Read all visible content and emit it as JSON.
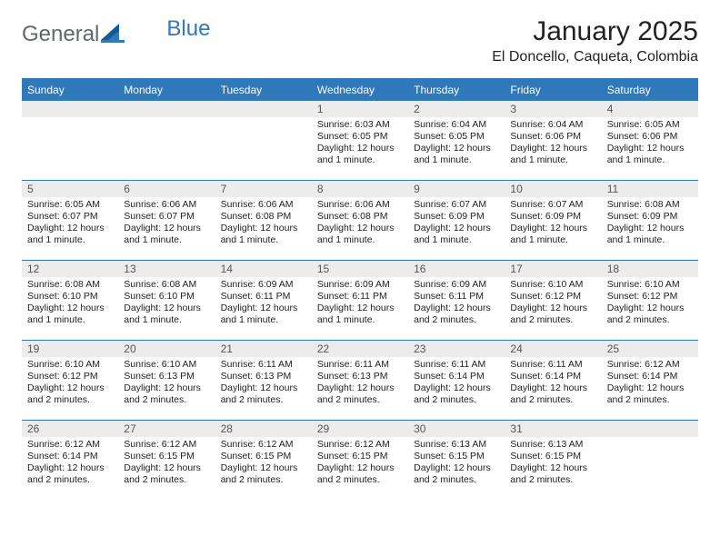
{
  "logo": {
    "text1": "General",
    "text2": "Blue",
    "color1": "#63686c",
    "color2": "#2f78b9"
  },
  "title": "January 2025",
  "location": "El Doncello, Caqueta, Colombia",
  "theme": {
    "header_bg": "#2f78b9",
    "header_fg": "#ffffff",
    "daynum_bg": "#ececec",
    "rule": "#2f78b9"
  },
  "weekdays": [
    "Sunday",
    "Monday",
    "Tuesday",
    "Wednesday",
    "Thursday",
    "Friday",
    "Saturday"
  ],
  "weeks": [
    [
      null,
      null,
      null,
      {
        "n": "1",
        "sr": "6:03 AM",
        "ss": "6:05 PM",
        "dl": "12 hours and 1 minute."
      },
      {
        "n": "2",
        "sr": "6:04 AM",
        "ss": "6:05 PM",
        "dl": "12 hours and 1 minute."
      },
      {
        "n": "3",
        "sr": "6:04 AM",
        "ss": "6:06 PM",
        "dl": "12 hours and 1 minute."
      },
      {
        "n": "4",
        "sr": "6:05 AM",
        "ss": "6:06 PM",
        "dl": "12 hours and 1 minute."
      }
    ],
    [
      {
        "n": "5",
        "sr": "6:05 AM",
        "ss": "6:07 PM",
        "dl": "12 hours and 1 minute."
      },
      {
        "n": "6",
        "sr": "6:06 AM",
        "ss": "6:07 PM",
        "dl": "12 hours and 1 minute."
      },
      {
        "n": "7",
        "sr": "6:06 AM",
        "ss": "6:08 PM",
        "dl": "12 hours and 1 minute."
      },
      {
        "n": "8",
        "sr": "6:06 AM",
        "ss": "6:08 PM",
        "dl": "12 hours and 1 minute."
      },
      {
        "n": "9",
        "sr": "6:07 AM",
        "ss": "6:09 PM",
        "dl": "12 hours and 1 minute."
      },
      {
        "n": "10",
        "sr": "6:07 AM",
        "ss": "6:09 PM",
        "dl": "12 hours and 1 minute."
      },
      {
        "n": "11",
        "sr": "6:08 AM",
        "ss": "6:09 PM",
        "dl": "12 hours and 1 minute."
      }
    ],
    [
      {
        "n": "12",
        "sr": "6:08 AM",
        "ss": "6:10 PM",
        "dl": "12 hours and 1 minute."
      },
      {
        "n": "13",
        "sr": "6:08 AM",
        "ss": "6:10 PM",
        "dl": "12 hours and 1 minute."
      },
      {
        "n": "14",
        "sr": "6:09 AM",
        "ss": "6:11 PM",
        "dl": "12 hours and 1 minute."
      },
      {
        "n": "15",
        "sr": "6:09 AM",
        "ss": "6:11 PM",
        "dl": "12 hours and 1 minute."
      },
      {
        "n": "16",
        "sr": "6:09 AM",
        "ss": "6:11 PM",
        "dl": "12 hours and 2 minutes."
      },
      {
        "n": "17",
        "sr": "6:10 AM",
        "ss": "6:12 PM",
        "dl": "12 hours and 2 minutes."
      },
      {
        "n": "18",
        "sr": "6:10 AM",
        "ss": "6:12 PM",
        "dl": "12 hours and 2 minutes."
      }
    ],
    [
      {
        "n": "19",
        "sr": "6:10 AM",
        "ss": "6:12 PM",
        "dl": "12 hours and 2 minutes."
      },
      {
        "n": "20",
        "sr": "6:10 AM",
        "ss": "6:13 PM",
        "dl": "12 hours and 2 minutes."
      },
      {
        "n": "21",
        "sr": "6:11 AM",
        "ss": "6:13 PM",
        "dl": "12 hours and 2 minutes."
      },
      {
        "n": "22",
        "sr": "6:11 AM",
        "ss": "6:13 PM",
        "dl": "12 hours and 2 minutes."
      },
      {
        "n": "23",
        "sr": "6:11 AM",
        "ss": "6:14 PM",
        "dl": "12 hours and 2 minutes."
      },
      {
        "n": "24",
        "sr": "6:11 AM",
        "ss": "6:14 PM",
        "dl": "12 hours and 2 minutes."
      },
      {
        "n": "25",
        "sr": "6:12 AM",
        "ss": "6:14 PM",
        "dl": "12 hours and 2 minutes."
      }
    ],
    [
      {
        "n": "26",
        "sr": "6:12 AM",
        "ss": "6:14 PM",
        "dl": "12 hours and 2 minutes."
      },
      {
        "n": "27",
        "sr": "6:12 AM",
        "ss": "6:15 PM",
        "dl": "12 hours and 2 minutes."
      },
      {
        "n": "28",
        "sr": "6:12 AM",
        "ss": "6:15 PM",
        "dl": "12 hours and 2 minutes."
      },
      {
        "n": "29",
        "sr": "6:12 AM",
        "ss": "6:15 PM",
        "dl": "12 hours and 2 minutes."
      },
      {
        "n": "30",
        "sr": "6:13 AM",
        "ss": "6:15 PM",
        "dl": "12 hours and 2 minutes."
      },
      {
        "n": "31",
        "sr": "6:13 AM",
        "ss": "6:15 PM",
        "dl": "12 hours and 2 minutes."
      },
      null
    ]
  ],
  "labels": {
    "sunrise": "Sunrise:",
    "sunset": "Sunset:",
    "daylight": "Daylight:"
  }
}
